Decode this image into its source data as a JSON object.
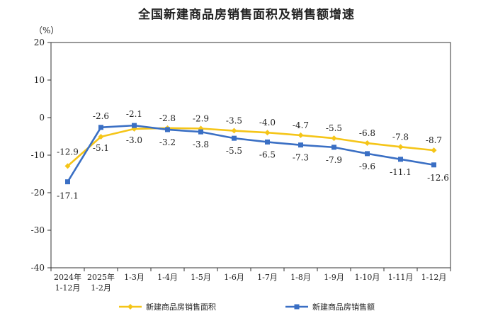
{
  "chart_data": {
    "type": "line",
    "title": "全国新建商品房销售面积及销售额增速",
    "ylabel": "（%）",
    "ylim": [
      -40,
      20
    ],
    "yticks": [
      20,
      10,
      0,
      -10,
      -20,
      -30,
      -40
    ],
    "categories": [
      [
        "2024年",
        "1-12月"
      ],
      [
        "2025年",
        "1-2月"
      ],
      [
        "1-3月"
      ],
      [
        "1-4月"
      ],
      [
        "1-5月"
      ],
      [
        "1-6月"
      ],
      [
        "1-7月"
      ],
      [
        "1-8月"
      ],
      [
        "1-9月"
      ],
      [
        "1-10月"
      ],
      [
        "1-11月"
      ],
      [
        "1-12月"
      ]
    ],
    "series": [
      {
        "name": "新建商品房销售面积",
        "color": "#f5c518",
        "values": [
          -12.9,
          -5.1,
          -3.0,
          -2.8,
          -2.9,
          -3.5,
          -4.0,
          -4.7,
          -5.5,
          -6.8,
          -7.8,
          -8.7
        ],
        "labels": [
          "-12.9",
          "-5.1",
          "-3.0",
          "-2.8",
          "-2.9",
          "-3.5",
          "-4.0",
          "-4.7",
          "-5.5",
          "-6.8",
          "-7.8",
          "-8.7"
        ]
      },
      {
        "name": "新建商品房销售额",
        "color": "#3a6fc4",
        "values": [
          -17.1,
          -2.6,
          -2.1,
          -3.2,
          -3.8,
          -5.5,
          -6.5,
          -7.3,
          -7.9,
          -9.6,
          -11.1,
          -12.6
        ],
        "labels": [
          "-17.1",
          "-2.6",
          "-2.1",
          "-3.2",
          "-3.8",
          "-5.5",
          "-6.5",
          "-7.3",
          "-7.9",
          "-9.6",
          "-11.1",
          "-12.6"
        ]
      }
    ],
    "legend_position": "bottom",
    "grid": false
  }
}
